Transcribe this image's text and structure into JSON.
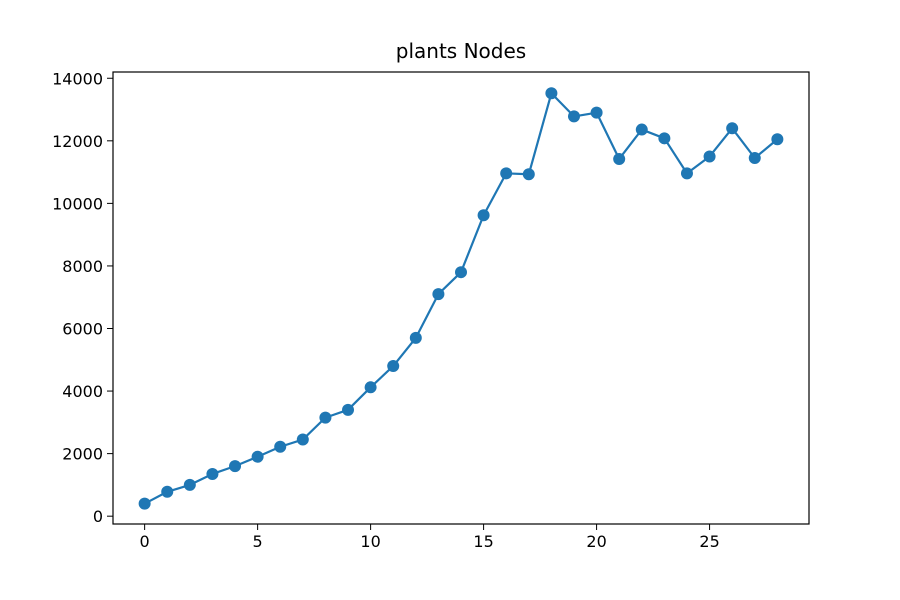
{
  "chart_data": {
    "type": "line",
    "title": "plants Nodes",
    "xlabel": "",
    "ylabel": "",
    "xlim": [
      -1.4,
      29.4
    ],
    "ylim": [
      -250,
      14200
    ],
    "xticks": [
      0,
      5,
      10,
      15,
      20,
      25
    ],
    "yticks": [
      0,
      2000,
      4000,
      6000,
      8000,
      10000,
      12000,
      14000
    ],
    "grid": false,
    "legend": "none",
    "series": [
      {
        "color": "#1f77b4",
        "marker": "circle",
        "x": [
          0,
          1,
          2,
          3,
          4,
          5,
          6,
          7,
          8,
          9,
          10,
          11,
          12,
          13,
          14,
          15,
          16,
          17,
          18,
          19,
          20,
          21,
          22,
          23,
          24,
          25,
          26,
          27,
          28
        ],
        "y": [
          400,
          780,
          1000,
          1350,
          1600,
          1900,
          2220,
          2450,
          3150,
          3400,
          4120,
          4800,
          5700,
          7100,
          7800,
          9620,
          10960,
          10930,
          13520,
          12780,
          12900,
          11420,
          12360,
          12080,
          10960,
          11500,
          12400,
          11450,
          12050
        ]
      }
    ]
  }
}
